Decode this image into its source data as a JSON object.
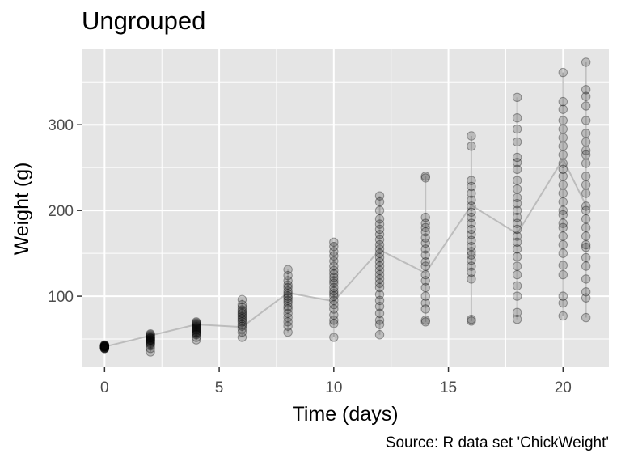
{
  "chart_data": {
    "type": "scatter",
    "title": "Ungrouped",
    "xlabel": "Time (days)",
    "ylabel": "Weight (g)",
    "caption": "Source: R data set 'ChickWeight'",
    "xlim": [
      -1,
      22
    ],
    "ylim": [
      17,
      388
    ],
    "x_ticks": [
      0,
      5,
      10,
      15,
      20
    ],
    "y_ticks": [
      100,
      200,
      300
    ],
    "grid": true,
    "colors": {
      "panel": "#e5e5e5",
      "grid": "#ffffff",
      "point": "#000000",
      "line": "#b2b2b2"
    },
    "series": [
      {
        "type": "scatter",
        "points": [
          {
            "x": 0,
            "ys": [
              39,
              40,
              41,
              42,
              43,
              42,
              41,
              40,
              39,
              41,
              42,
              43,
              41,
              40,
              42,
              39,
              41
            ]
          },
          {
            "x": 2,
            "ys": [
              35,
              39,
              42,
              44,
              46,
              48,
              49,
              50,
              51,
              52,
              53,
              54,
              55,
              56,
              49,
              47,
              45,
              51
            ]
          },
          {
            "x": 4,
            "ys": [
              49,
              52,
              55,
              57,
              58,
              59,
              60,
              61,
              62,
              63,
              64,
              65,
              66,
              67,
              68,
              69,
              70,
              56
            ]
          },
          {
            "x": 6,
            "ys": [
              52,
              58,
              62,
              65,
              67,
              70,
              72,
              74,
              76,
              78,
              80,
              82,
              84,
              87,
              90,
              96
            ]
          },
          {
            "x": 8,
            "ys": [
              58,
              65,
              70,
              75,
              80,
              85,
              88,
              92,
              95,
              98,
              100,
              103,
              106,
              110,
              113,
              118,
              124,
              131
            ]
          },
          {
            "x": 10,
            "ys": [
              52,
              68,
              72,
              78,
              85,
              90,
              95,
              100,
              103,
              106,
              110,
              115,
              118,
              122,
              126,
              130,
              135,
              141,
              147,
              152,
              158,
              163
            ]
          },
          {
            "x": 12,
            "ys": [
              55,
              67,
              72,
              80,
              88,
              95,
              102,
              110,
              115,
              120,
              125,
              130,
              135,
              140,
              145,
              150,
              155,
              160,
              166,
              172,
              178,
              184,
              190,
              200,
              210,
              217
            ]
          },
          {
            "x": 14,
            "ys": [
              70,
              72,
              85,
              92,
              100,
              110,
              118,
              125,
              135,
              140,
              148,
              155,
              162,
              168,
              175,
              180,
              185,
              192,
              238,
              240
            ]
          },
          {
            "x": 16,
            "ys": [
              71,
              73,
              120,
              128,
              135,
              142,
              148,
              152,
              158,
              165,
              172,
              178,
              185,
              192,
              198,
              205,
              212,
              220,
              228,
              235,
              275,
              287
            ]
          },
          {
            "x": 18,
            "ys": [
              73,
              81,
              100,
              112,
              125,
              135,
              146,
              155,
              163,
              170,
              178,
              185,
              192,
              200,
              208,
              215,
              225,
              235,
              248,
              256,
              262,
              280,
              295,
              308,
              332
            ]
          },
          {
            "x": 20,
            "ys": [
              77,
              92,
              100,
              125,
              136,
              150,
              160,
              170,
              180,
              185,
              195,
              200,
              210,
              220,
              230,
              240,
              248,
              255,
              265,
              275,
              285,
              295,
              305,
              318,
              327,
              361
            ]
          },
          {
            "x": 21,
            "ys": [
              75,
              98,
              105,
              120,
              135,
              145,
              157,
              160,
              170,
              180,
              190,
              200,
              205,
              220,
              230,
              240,
              255,
              265,
              270,
              280,
              290,
              305,
              322,
              333,
              341,
              373
            ]
          }
        ]
      },
      {
        "type": "line",
        "name": "",
        "x": [
          0,
          2,
          4,
          6,
          8,
          10,
          12,
          14,
          16,
          18,
          20,
          21
        ],
        "y": [
          41,
          54,
          67,
          64,
          104,
          94,
          154,
          127,
          206,
          173,
          260,
          206
        ]
      }
    ]
  }
}
